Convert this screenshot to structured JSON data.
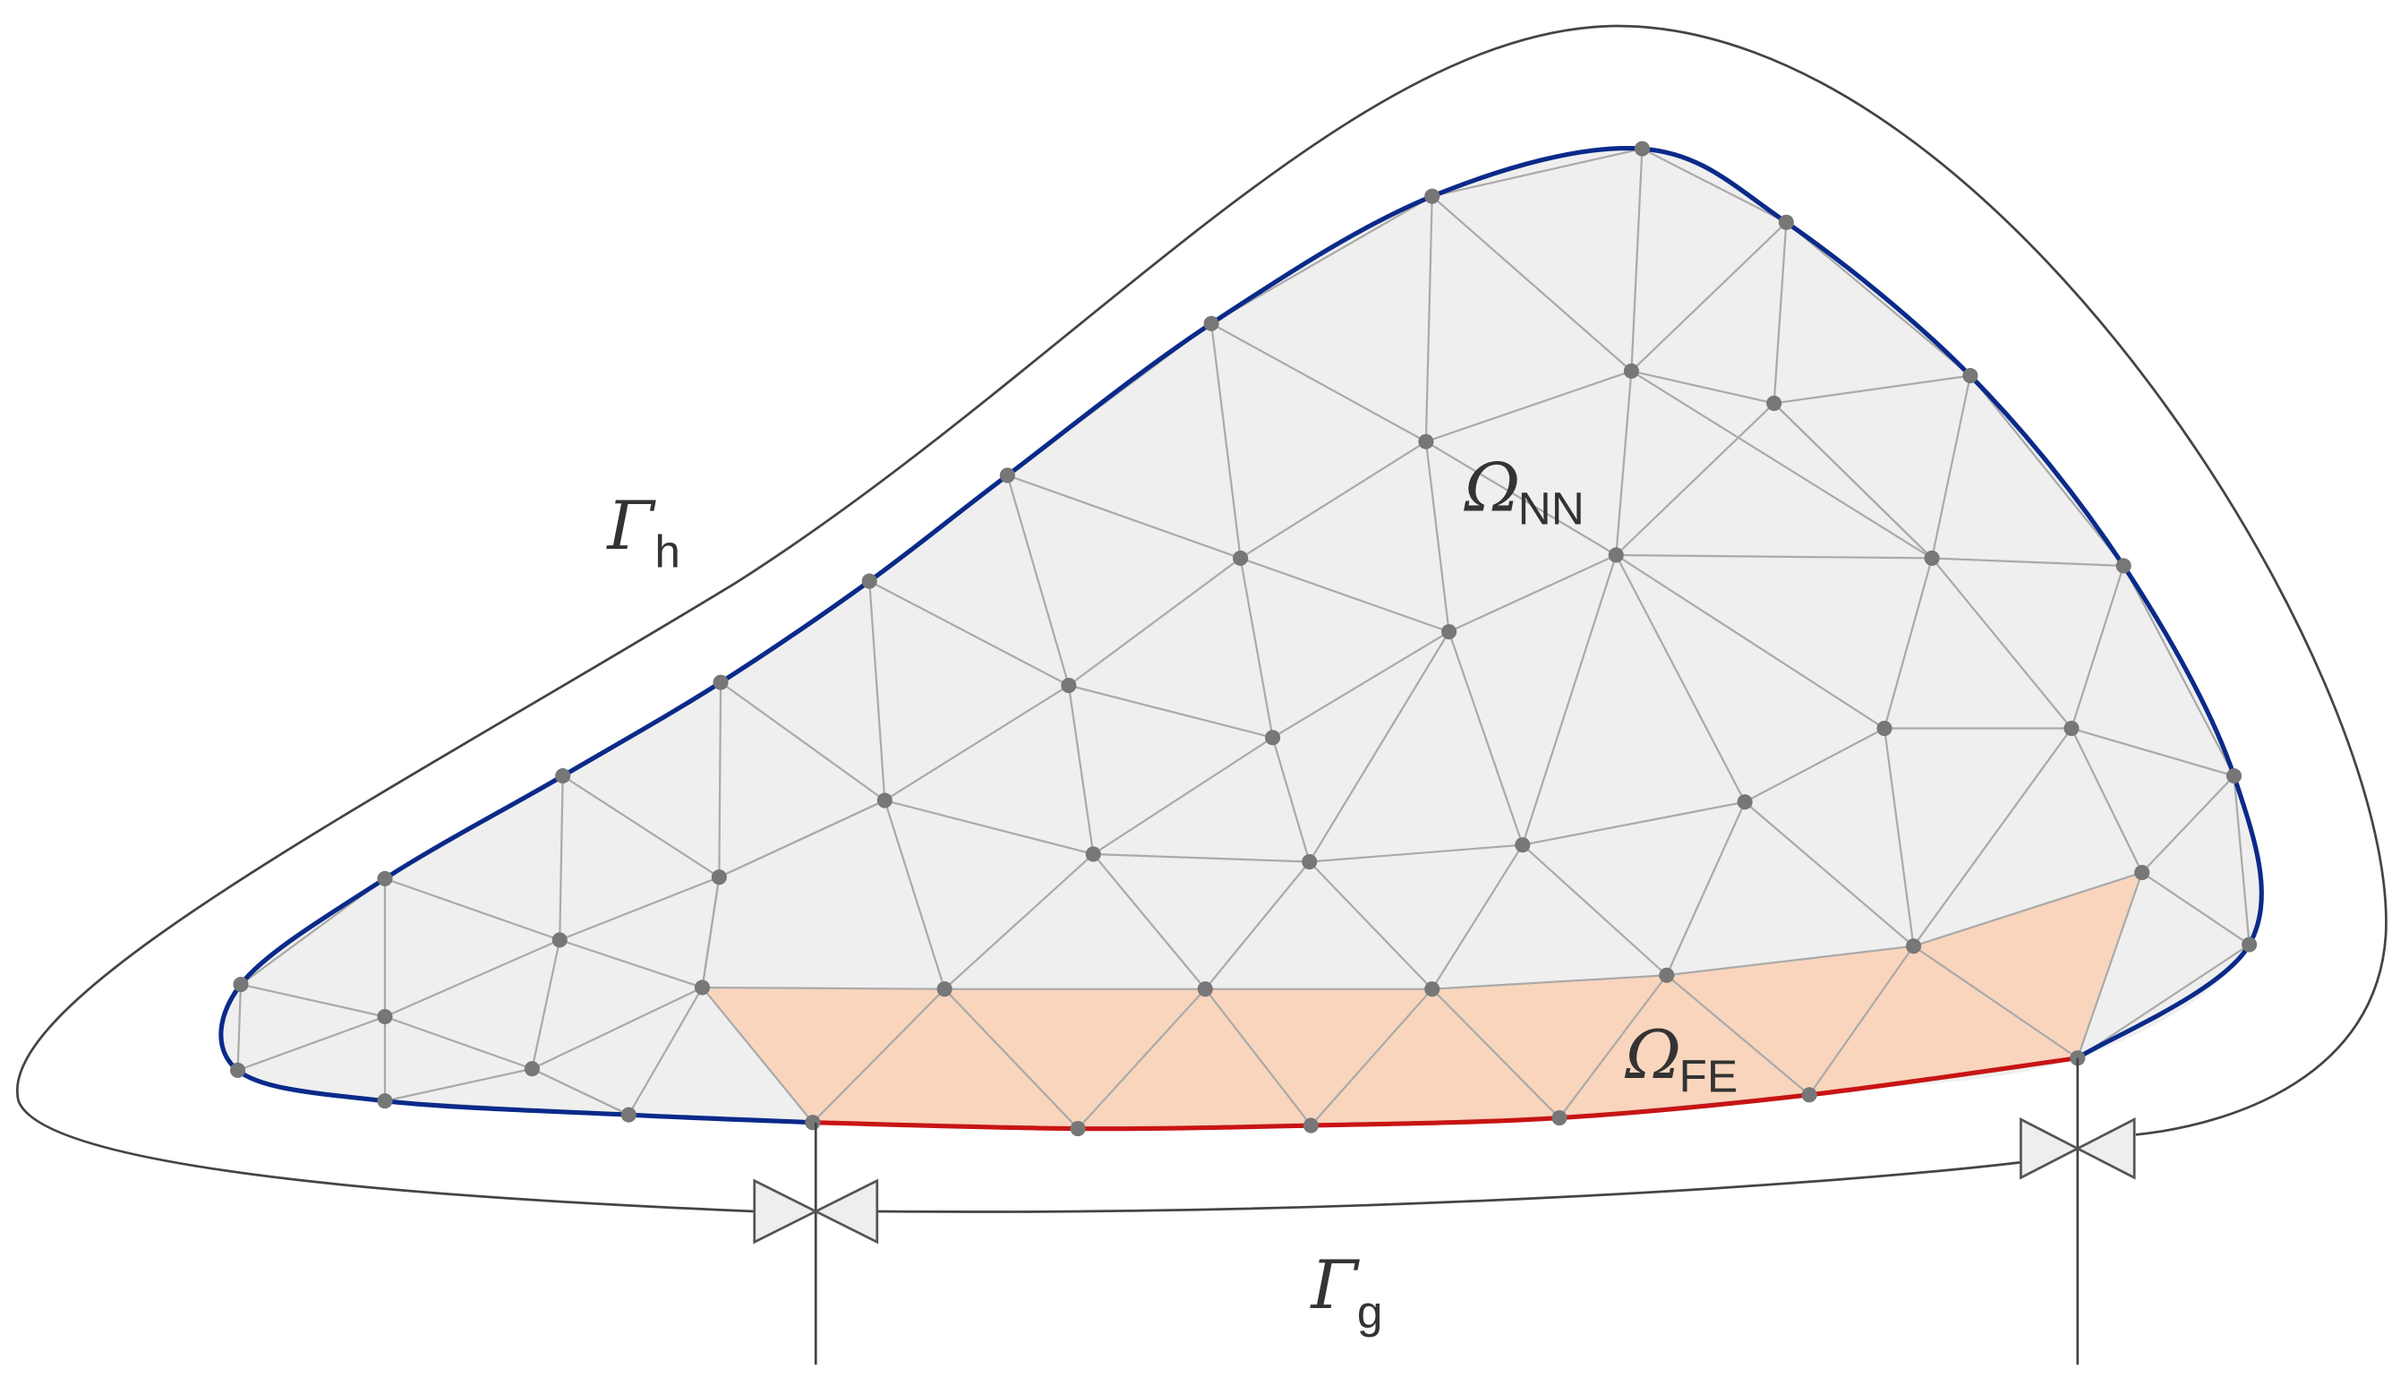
{
  "labels": {
    "gamma_h": {
      "symbol": "Γ",
      "subscript": "h"
    },
    "omega_nn": {
      "symbol": "Ω",
      "subscript": "NN"
    },
    "omega_fe": {
      "symbol": "Ω",
      "subscript": "FE"
    },
    "gamma_g": {
      "symbol": "Γ",
      "subscript": "g"
    }
  }
}
